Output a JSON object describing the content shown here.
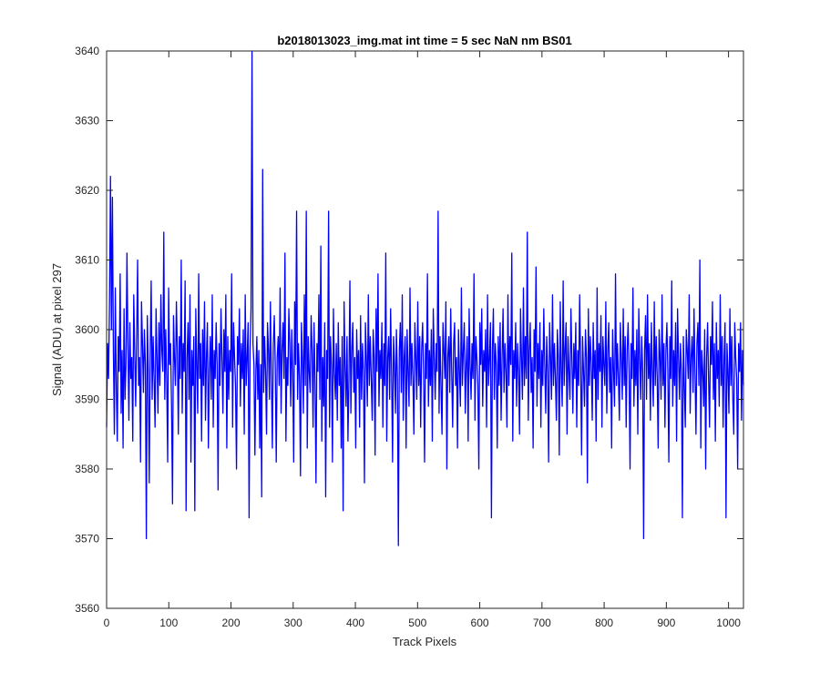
{
  "chart_data": {
    "type": "line",
    "title": "b2018013023_img.mat int time = 5 sec  NaN nm BS01",
    "xlabel": "Track Pixels",
    "ylabel": "Signal (ADU) at pixel 297",
    "xlim": [
      0,
      1024
    ],
    "ylim": [
      3560,
      3640
    ],
    "xticks": [
      0,
      100,
      200,
      300,
      400,
      500,
      600,
      700,
      800,
      900,
      1000
    ],
    "yticks": [
      3560,
      3570,
      3580,
      3590,
      3600,
      3610,
      3620,
      3630,
      3640
    ],
    "grid": false,
    "line_color": "#0000ff",
    "series": [
      {
        "values": [
          3586,
          3598,
          3593,
          3604,
          3622,
          3600,
          3619,
          3597,
          3585,
          3606,
          3592,
          3584,
          3599,
          3594,
          3608,
          3588,
          3597,
          3583,
          3603,
          3590,
          3595,
          3611,
          3598,
          3587,
          3601,
          3593,
          3596,
          3584,
          3605,
          3597,
          3589,
          3599,
          3610,
          3592,
          3596,
          3581,
          3604,
          3598,
          3591,
          3600,
          3595,
          3570,
          3602,
          3594,
          3578,
          3597,
          3607,
          3590,
          3599,
          3593,
          3586,
          3603,
          3596,
          3588,
          3601,
          3592,
          3605,
          3597,
          3594,
          3614,
          3590,
          3600,
          3593,
          3581,
          3606,
          3595,
          3598,
          3589,
          3575,
          3602,
          3596,
          3592,
          3604,
          3597,
          3585,
          3599,
          3593,
          3610,
          3588,
          3598,
          3594,
          3607,
          3574,
          3596,
          3601,
          3590,
          3605,
          3581,
          3597,
          3592,
          3599,
          3574,
          3603,
          3595,
          3588,
          3608,
          3593,
          3598,
          3584,
          3600,
          3592,
          3604,
          3587,
          3596,
          3601,
          3583,
          3594,
          3599,
          3590,
          3605,
          3586,
          3597,
          3593,
          3601,
          3595,
          3577,
          3598,
          3592,
          3603,
          3596,
          3588,
          3600,
          3594,
          3605,
          3583,
          3599,
          3590,
          3597,
          3594,
          3608,
          3586,
          3601,
          3596,
          3592,
          3580,
          3599,
          3595,
          3603,
          3589,
          3598,
          3593,
          3600,
          3585,
          3605,
          3592,
          3596,
          3601,
          3573,
          3597,
          3603,
          3640,
          3598,
          3595,
          3582,
          3594,
          3599,
          3590,
          3597,
          3583,
          3595,
          3576,
          3623,
          3591,
          3599,
          3594,
          3585,
          3601,
          3597,
          3590,
          3604,
          3593,
          3583,
          3598,
          3602,
          3595,
          3581,
          3596,
          3599,
          3592,
          3606,
          3588,
          3597,
          3601,
          3593,
          3611,
          3584,
          3596,
          3592,
          3603,
          3598,
          3589,
          3600,
          3594,
          3581,
          3604,
          3595,
          3617,
          3590,
          3598,
          3593,
          3579,
          3601,
          3596,
          3588,
          3605,
          3592,
          3617,
          3583,
          3599,
          3594,
          3591,
          3602,
          3597,
          3586,
          3601,
          3593,
          3578,
          3598,
          3594,
          3605,
          3590,
          3612,
          3584,
          3596,
          3589,
          3601,
          3576,
          3597,
          3593,
          3617,
          3586,
          3599,
          3595,
          3581,
          3603,
          3594,
          3590,
          3598,
          3587,
          3601,
          3592,
          3596,
          3583,
          3599,
          3574,
          3604,
          3595,
          3589,
          3599,
          3584,
          3593,
          3607,
          3588,
          3597,
          3601,
          3591,
          3596,
          3583,
          3600,
          3593,
          3597,
          3586,
          3602,
          3590,
          3598,
          3594,
          3578,
          3601,
          3596,
          3589,
          3605,
          3592,
          3599,
          3593,
          3587,
          3600,
          3596,
          3582,
          3603,
          3594,
          3608,
          3589,
          3597,
          3593,
          3601,
          3586,
          3598,
          3592,
          3611,
          3584,
          3596,
          3599,
          3590,
          3603,
          3594,
          3581,
          3599,
          3595,
          3588,
          3600,
          3593,
          3569,
          3597,
          3601,
          3591,
          3605,
          3587,
          3596,
          3599,
          3583,
          3600,
          3594,
          3589,
          3606,
          3592,
          3598,
          3593,
          3585,
          3601,
          3596,
          3590,
          3604,
          3592,
          3599,
          3586,
          3597,
          3601,
          3594,
          3581,
          3598,
          3593,
          3608,
          3589,
          3597,
          3592,
          3600,
          3584,
          3603,
          3596,
          3590,
          3598,
          3594,
          3617,
          3588,
          3599,
          3592,
          3585,
          3601,
          3597,
          3593,
          3604,
          3580,
          3596,
          3599,
          3591,
          3603,
          3594,
          3586,
          3598,
          3601,
          3592,
          3596,
          3583,
          3600,
          3594,
          3589,
          3606,
          3592,
          3597,
          3601,
          3588,
          3595,
          3599,
          3584,
          3603,
          3595,
          3590,
          3598,
          3593,
          3608,
          3587,
          3599,
          3596,
          3592,
          3580,
          3601,
          3595,
          3603,
          3589,
          3597,
          3594,
          3600,
          3586,
          3605,
          3592,
          3596,
          3601,
          3573,
          3597,
          3603,
          3590,
          3598,
          3595,
          3583,
          3599,
          3592,
          3601,
          3587,
          3596,
          3603,
          3591,
          3598,
          3594,
          3586,
          3605,
          3592,
          3599,
          3595,
          3611,
          3584,
          3597,
          3593,
          3601,
          3589,
          3598,
          3594,
          3585,
          3603,
          3596,
          3590,
          3606,
          3592,
          3599,
          3593,
          3614,
          3587,
          3597,
          3601,
          3591,
          3596,
          3583,
          3600,
          3594,
          3609,
          3589,
          3598,
          3593,
          3601,
          3586,
          3597,
          3592,
          3603,
          3595,
          3588,
          3599,
          3594,
          3581,
          3601,
          3596,
          3590,
          3605,
          3592,
          3598,
          3593,
          3587,
          3600,
          3596,
          3582,
          3604,
          3594,
          3589,
          3607,
          3592,
          3597,
          3601,
          3585,
          3599,
          3594,
          3590,
          3603,
          3596,
          3588,
          3598,
          3593,
          3601,
          3586,
          3597,
          3592,
          3605,
          3595,
          3582,
          3599,
          3594,
          3589,
          3600,
          3596,
          3578,
          3603,
          3592,
          3599,
          3595,
          3587,
          3601,
          3593,
          3597,
          3584,
          3606,
          3590,
          3598,
          3594,
          3602,
          3586,
          3599,
          3595,
          3592,
          3604,
          3588,
          3597,
          3601,
          3591,
          3596,
          3583,
          3600,
          3594,
          3589,
          3608,
          3592,
          3598,
          3593,
          3587,
          3601,
          3596,
          3590,
          3603,
          3592,
          3599,
          3586,
          3597,
          3601,
          3594,
          3580,
          3598,
          3593,
          3606,
          3589,
          3597,
          3592,
          3600,
          3585,
          3603,
          3596,
          3590,
          3599,
          3594,
          3570,
          3597,
          3602,
          3590,
          3605,
          3593,
          3598,
          3587,
          3601,
          3594,
          3589,
          3604,
          3592,
          3599,
          3593,
          3583,
          3600,
          3596,
          3590,
          3605,
          3592,
          3598,
          3586,
          3597,
          3601,
          3594,
          3581,
          3599,
          3593,
          3607,
          3589,
          3597,
          3592,
          3601,
          3584,
          3603,
          3596,
          3590,
          3598,
          3594,
          3573,
          3599,
          3592,
          3586,
          3600,
          3597,
          3593,
          3605,
          3588,
          3596,
          3599,
          3591,
          3603,
          3594,
          3585,
          3598,
          3601,
          3592,
          3610,
          3583,
          3597,
          3594,
          3589,
          3600,
          3580,
          3596,
          3601,
          3593,
          3586,
          3599,
          3595,
          3604,
          3590,
          3598,
          3584,
          3601,
          3593,
          3597,
          3589,
          3605,
          3592,
          3599,
          3586,
          3596,
          3601,
          3573,
          3598,
          3594,
          3588,
          3603,
          3592,
          3599,
          3590,
          3585,
          3601,
          3596,
          3593,
          3580,
          3598,
          3594,
          3601,
          3587,
          3597,
          3592
        ]
      }
    ]
  }
}
